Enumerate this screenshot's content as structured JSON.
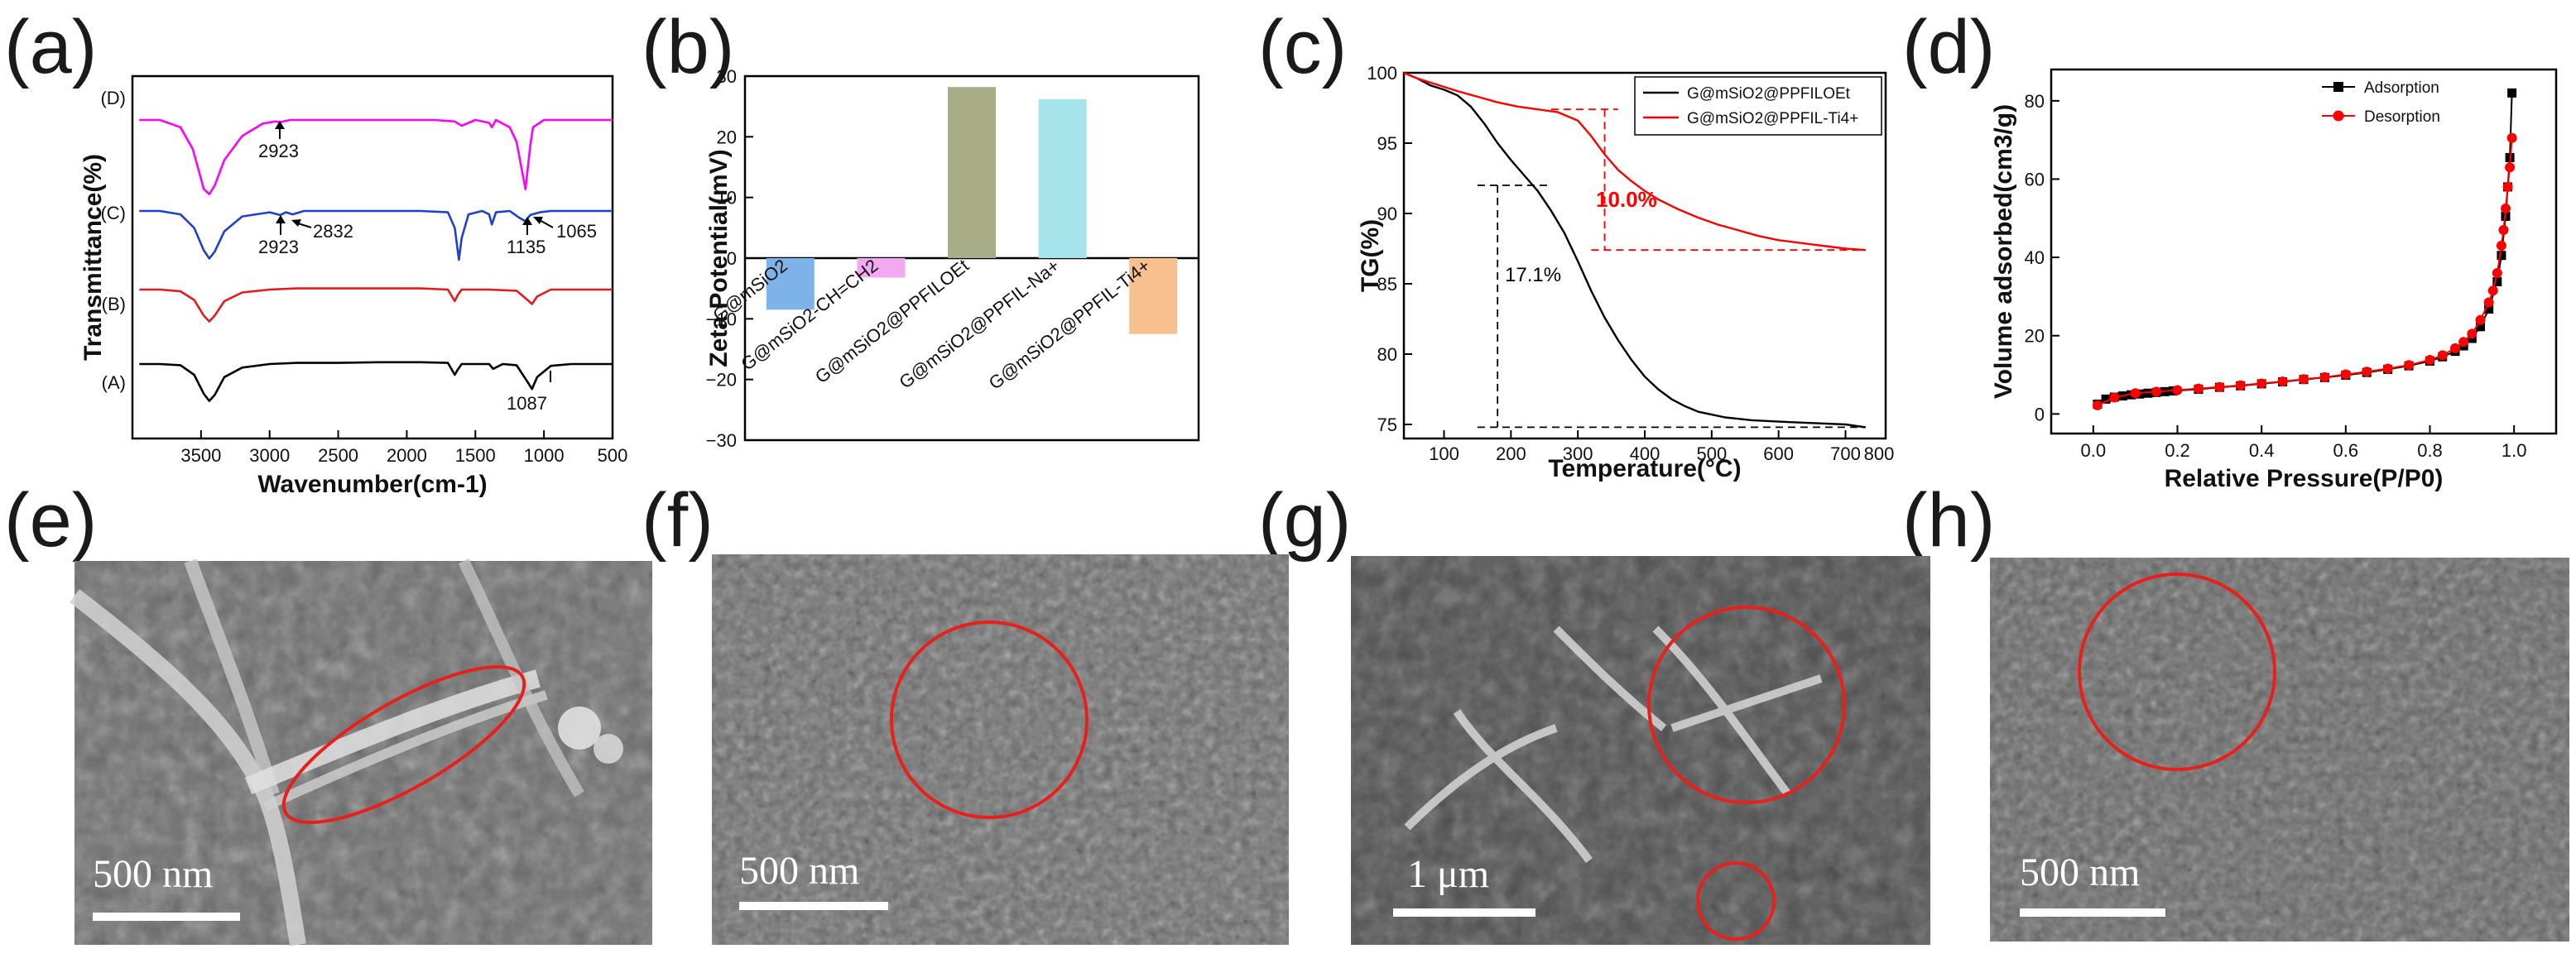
{
  "panels": {
    "a": "(a)",
    "b": "(b)",
    "c": "(c)",
    "d": "(d)",
    "e": "(e)",
    "f": "(f)",
    "g": "(g)",
    "h": "(h)"
  },
  "chart_data": [
    {
      "panel": "a",
      "type": "line",
      "xlabel": "Wavenumber(cm-1)",
      "ylabel": "Transmittance(%)",
      "xlim": [
        4000,
        500
      ],
      "x_ticks": [
        3500,
        3000,
        2500,
        2000,
        1500,
        1000,
        500
      ],
      "x_tick_labels": [
        "3500",
        "3000",
        "2500",
        "2000",
        "1500",
        "1000",
        "500"
      ],
      "y_ticks": [],
      "series": [
        {
          "name": "(A)",
          "color": "#000000",
          "x": [
            3950,
            3800,
            3650,
            3550,
            3480,
            3440,
            3400,
            3330,
            3200,
            3000,
            2800,
            2500,
            2200,
            1900,
            1700,
            1650,
            1630,
            1600,
            1500,
            1400,
            1370,
            1300,
            1200,
            1120,
            1087,
            1050,
            950,
            800,
            650,
            500
          ],
          "y": [
            0.0,
            0.0,
            -0.02,
            -0.18,
            -0.5,
            -0.62,
            -0.52,
            -0.22,
            -0.06,
            0.0,
            0.02,
            0.02,
            0.03,
            0.03,
            0.02,
            -0.18,
            -0.1,
            0.0,
            0.0,
            0.0,
            -0.08,
            0.0,
            -0.02,
            -0.3,
            -0.42,
            -0.22,
            -0.03,
            0.0,
            0.0,
            0.0
          ]
        },
        {
          "name": "(B)",
          "color": "#e41a1c",
          "x": [
            3950,
            3800,
            3650,
            3550,
            3480,
            3440,
            3400,
            3330,
            3200,
            3000,
            2800,
            2500,
            2200,
            1900,
            1700,
            1650,
            1630,
            1600,
            1500,
            1400,
            1200,
            1120,
            1087,
            1050,
            950,
            800,
            650,
            500
          ],
          "y": [
            0.0,
            0.0,
            -0.03,
            -0.18,
            -0.45,
            -0.55,
            -0.45,
            -0.2,
            -0.05,
            0.0,
            0.02,
            0.02,
            0.02,
            0.02,
            0.0,
            -0.2,
            -0.1,
            0.0,
            0.0,
            0.0,
            -0.02,
            -0.18,
            -0.25,
            -0.12,
            0.0,
            0.0,
            0.0,
            0.0
          ]
        },
        {
          "name": "(C)",
          "color": "#1f3fd1",
          "x": [
            3950,
            3800,
            3650,
            3550,
            3480,
            3440,
            3400,
            3330,
            3200,
            3000,
            2923,
            2880,
            2832,
            2750,
            2500,
            2200,
            1900,
            1700,
            1650,
            1620,
            1600,
            1550,
            1450,
            1400,
            1380,
            1350,
            1250,
            1180,
            1135,
            1100,
            1065,
            1030,
            950,
            800,
            650,
            500
          ],
          "y": [
            0.0,
            0.0,
            -0.05,
            -0.25,
            -0.58,
            -0.7,
            -0.6,
            -0.3,
            -0.08,
            -0.02,
            -0.06,
            -0.02,
            -0.05,
            0.0,
            0.0,
            0.0,
            0.0,
            -0.02,
            -0.25,
            -0.72,
            -0.4,
            -0.05,
            0.0,
            -0.05,
            -0.2,
            -0.02,
            0.0,
            -0.1,
            -0.15,
            -0.06,
            -0.04,
            -0.02,
            0.0,
            0.0,
            0.0,
            0.0
          ]
        },
        {
          "name": "(D)",
          "color": "#ff00ff",
          "x": [
            3950,
            3800,
            3650,
            3560,
            3480,
            3440,
            3400,
            3330,
            3200,
            3050,
            2960,
            2923,
            2850,
            2700,
            2400,
            2100,
            1800,
            1650,
            1600,
            1500,
            1400,
            1380,
            1350,
            1250,
            1200,
            1160,
            1135,
            1100,
            1080,
            1000,
            900,
            800,
            650,
            500
          ],
          "y": [
            0.0,
            0.0,
            -0.1,
            -0.4,
            -0.95,
            -1.02,
            -0.9,
            -0.55,
            -0.22,
            -0.05,
            -0.02,
            -0.03,
            0.0,
            0.0,
            0.0,
            0.0,
            0.0,
            -0.02,
            -0.08,
            0.0,
            -0.04,
            -0.1,
            0.0,
            -0.1,
            -0.3,
            -0.7,
            -0.95,
            -0.35,
            -0.1,
            0.0,
            0.0,
            0.0,
            0.0,
            0.0
          ]
        }
      ],
      "annotations": [
        {
          "label": "2923"
        },
        {
          "label": "2923"
        },
        {
          "label": "2832"
        },
        {
          "label": "1135"
        },
        {
          "label": "1065"
        },
        {
          "label": "1087"
        }
      ]
    },
    {
      "panel": "b",
      "type": "bar",
      "ylabel": "Zeta Potential(mV)",
      "ylim": [
        -30,
        30
      ],
      "y_ticks": [
        -30,
        -20,
        -10,
        0,
        10,
        20,
        30
      ],
      "y_tick_labels": [
        "−30",
        "−20",
        "−10",
        "0",
        "10",
        "20",
        "30"
      ],
      "categories": [
        "G@mSiO2",
        "G@mSiO2-CH=CH2",
        "G@mSiO2@PPFILOEt",
        "G@mSiO2@PPFIL-Na+",
        "G@mSiO2@PPFIL-Ti4+"
      ],
      "values": [
        -8.5,
        -3.2,
        28.2,
        26.2,
        -12.5
      ],
      "colors": [
        "#7eb3ea",
        "#f3a9f0",
        "#a8ad87",
        "#a5e4ea",
        "#f7c08f"
      ]
    },
    {
      "panel": "c",
      "type": "line",
      "xlabel": "Temperature(°C)",
      "ylabel": "TG(%)",
      "xlim": [
        40,
        760
      ],
      "ylim": [
        74,
        100
      ],
      "x_ticks": [
        100,
        200,
        300,
        400,
        500,
        600,
        700,
        800
      ],
      "x_tick_labels": [
        "100",
        "200",
        "300",
        "400",
        "500",
        "600",
        "700",
        "800"
      ],
      "y_ticks": [
        75,
        80,
        85,
        90,
        95,
        100
      ],
      "y_tick_labels": [
        "75",
        "80",
        "85",
        "90",
        "95",
        "100"
      ],
      "legend": [
        "G@mSiO2@PPFILOEt",
        "G@mSiO2@PPFIL-Ti4+"
      ],
      "series": [
        {
          "name": "G@mSiO2@PPFILOEt",
          "color": "#000000",
          "x": [
            40,
            60,
            80,
            100,
            120,
            140,
            160,
            180,
            200,
            220,
            240,
            260,
            280,
            300,
            320,
            340,
            360,
            380,
            400,
            420,
            440,
            460,
            480,
            500,
            520,
            540,
            560,
            600,
            650,
            700,
            730
          ],
          "y": [
            100,
            99.6,
            99.1,
            98.8,
            98.4,
            97.6,
            96.4,
            95.0,
            93.8,
            92.7,
            91.6,
            90.2,
            88.6,
            86.6,
            84.5,
            82.6,
            81.0,
            79.6,
            78.4,
            77.5,
            76.8,
            76.3,
            75.9,
            75.7,
            75.5,
            75.4,
            75.3,
            75.2,
            75.1,
            75.0,
            74.8
          ]
        },
        {
          "name": "G@mSiO2@PPFIL-Ti4+",
          "color": "#ff0000",
          "x": [
            40,
            60,
            80,
            100,
            120,
            150,
            180,
            210,
            240,
            270,
            300,
            320,
            340,
            360,
            380,
            400,
            420,
            450,
            480,
            510,
            540,
            570,
            600,
            650,
            700,
            730
          ],
          "y": [
            100,
            99.6,
            99.3,
            99.0,
            98.7,
            98.3,
            97.9,
            97.6,
            97.4,
            97.2,
            96.6,
            95.5,
            94.2,
            93.1,
            92.3,
            91.6,
            91.0,
            90.3,
            89.7,
            89.2,
            88.8,
            88.4,
            88.1,
            87.8,
            87.5,
            87.4
          ]
        }
      ],
      "annotations": [
        {
          "label": "10.0%",
          "color": "#ff0000"
        },
        {
          "label": "17.1%",
          "color": "#000000"
        }
      ]
    },
    {
      "panel": "d",
      "type": "line",
      "xlabel": "Relative Pressure(P/P0)",
      "ylabel": "Volume adsorbed(cm3/g)",
      "xlim": [
        -0.1,
        1.1
      ],
      "ylim": [
        -5,
        88
      ],
      "x_ticks": [
        0.0,
        0.2,
        0.4,
        0.6,
        0.8,
        1.0
      ],
      "x_tick_labels": [
        "0.0",
        "0.2",
        "0.4",
        "0.6",
        "0.8",
        "1.0"
      ],
      "y_ticks": [
        0,
        20,
        40,
        60,
        80
      ],
      "y_tick_labels": [
        "0",
        "20",
        "40",
        "60",
        "80"
      ],
      "legend": [
        "Adsorption",
        "Desorption"
      ],
      "series": [
        {
          "name": "Adsorption",
          "color": "#000000",
          "marker": "square",
          "x": [
            0.01,
            0.03,
            0.05,
            0.07,
            0.09,
            0.11,
            0.13,
            0.15,
            0.17,
            0.19,
            0.25,
            0.3,
            0.35,
            0.4,
            0.45,
            0.5,
            0.55,
            0.6,
            0.65,
            0.7,
            0.75,
            0.8,
            0.83,
            0.86,
            0.88,
            0.9,
            0.92,
            0.94,
            0.96,
            0.97,
            0.98,
            0.985,
            0.99,
            0.995
          ],
          "y": [
            2.5,
            3.8,
            4.3,
            4.6,
            4.9,
            5.1,
            5.3,
            5.5,
            5.7,
            5.9,
            6.3,
            6.8,
            7.2,
            7.7,
            8.2,
            8.8,
            9.3,
            9.9,
            10.6,
            11.4,
            12.3,
            13.5,
            14.6,
            16.0,
            17.4,
            19.3,
            22.3,
            26.8,
            33.8,
            40.5,
            50.5,
            58.0,
            65.5,
            82.0
          ]
        },
        {
          "name": "Desorption",
          "color": "#ff0000",
          "marker": "circle",
          "x": [
            0.995,
            0.99,
            0.985,
            0.98,
            0.975,
            0.97,
            0.96,
            0.95,
            0.94,
            0.92,
            0.9,
            0.88,
            0.86,
            0.83,
            0.8,
            0.75,
            0.7,
            0.65,
            0.6,
            0.55,
            0.5,
            0.45,
            0.4,
            0.35,
            0.3,
            0.25,
            0.2,
            0.15,
            0.1,
            0.05,
            0.01
          ],
          "y": [
            70.5,
            63.0,
            58.0,
            52.5,
            47.0,
            43.0,
            36.0,
            31.5,
            28.5,
            24.0,
            20.5,
            18.4,
            16.8,
            15.0,
            13.8,
            12.5,
            11.6,
            10.8,
            10.1,
            9.4,
            8.9,
            8.3,
            7.8,
            7.3,
            6.9,
            6.5,
            6.1,
            5.7,
            5.3,
            4.2,
            2.2
          ]
        }
      ]
    }
  ],
  "sem": {
    "e": {
      "scale_label": "500 nm"
    },
    "f": {
      "scale_label": "500 nm"
    },
    "g": {
      "scale_label": "1 μm"
    },
    "h": {
      "scale_label": "500 nm"
    }
  }
}
